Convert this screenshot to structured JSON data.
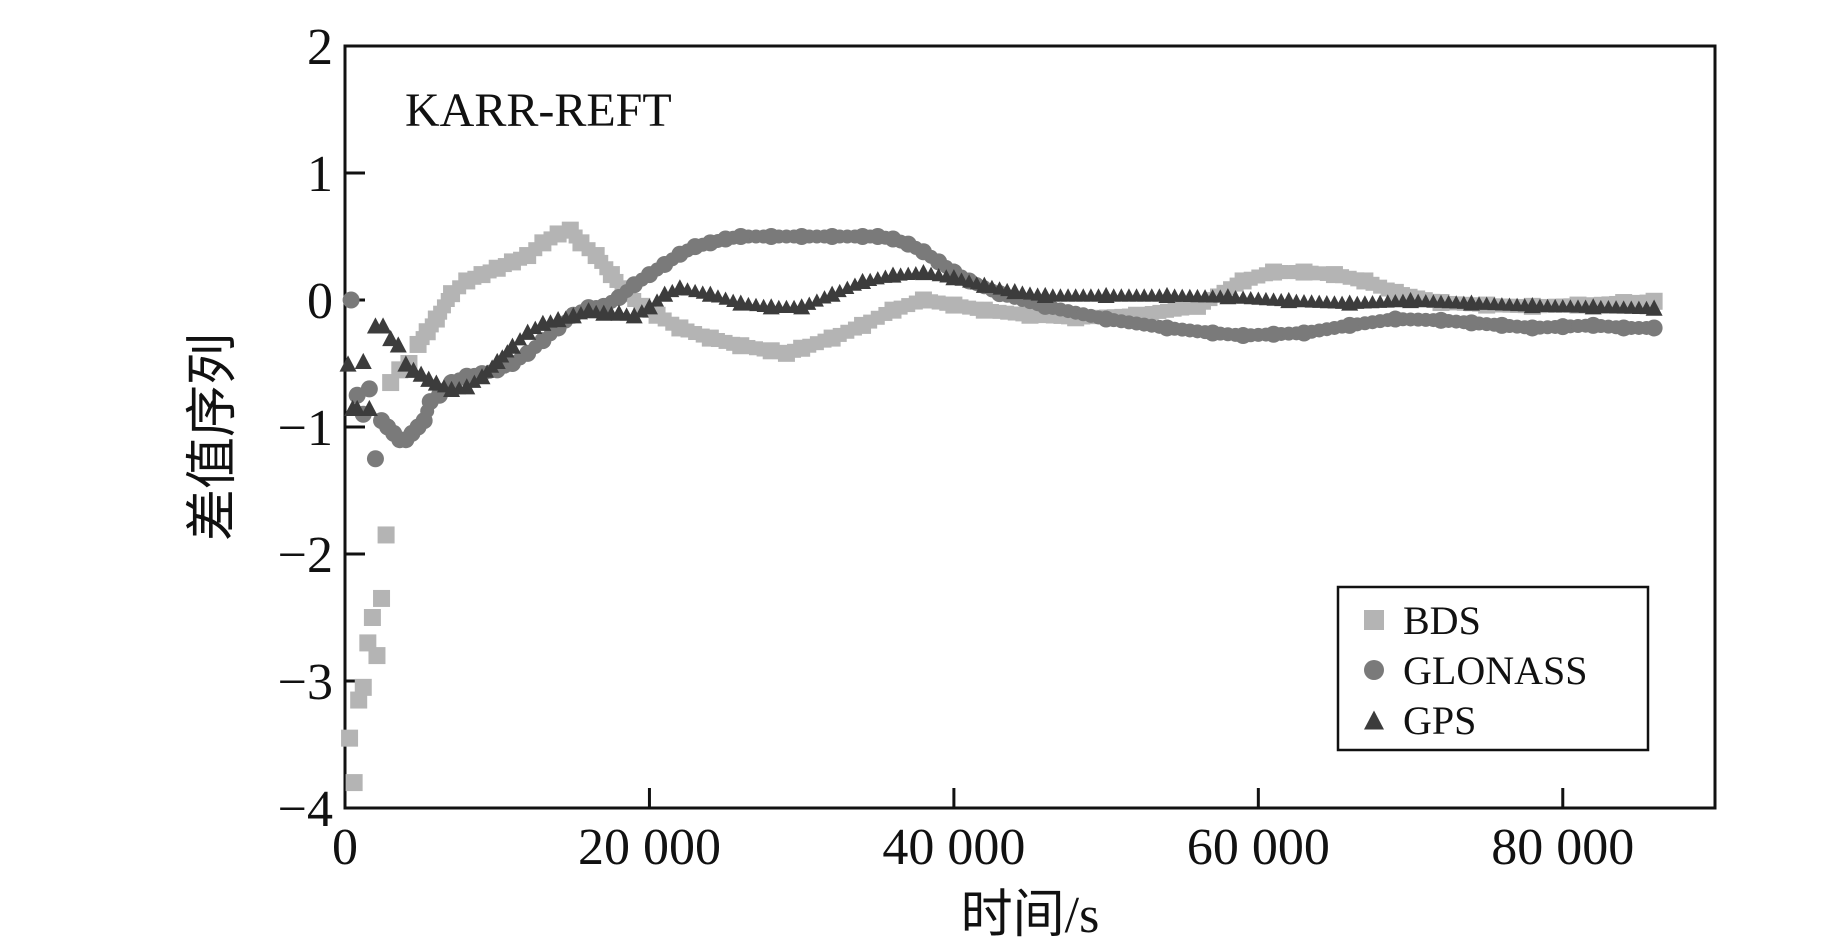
{
  "chart_data": {
    "type": "scatter",
    "plot_label": "KARR-REFT",
    "xlabel": "时间/s",
    "ylabel": "差值序列",
    "xlim": [
      0,
      90000
    ],
    "ylim": [
      -4,
      2
    ],
    "x_ticks": [
      0,
      20000,
      40000,
      60000,
      80000
    ],
    "x_tick_labels": [
      "0",
      "20 000",
      "40 000",
      "60 000",
      "80 000"
    ],
    "y_ticks": [
      -4,
      -3,
      -2,
      -1,
      0,
      1,
      2
    ],
    "y_tick_labels": [
      "−4",
      "−3",
      "−2",
      "−1",
      "0",
      "1",
      "2"
    ],
    "grid": false,
    "legend_position": "bottom-right",
    "series": [
      {
        "name": "BDS",
        "marker": "square",
        "color": "#b4b4b4",
        "x": [
          300,
          600,
          900,
          1200,
          1500,
          1800,
          2100,
          2400,
          2700,
          3000,
          3600,
          4200,
          4800,
          5400,
          6000,
          7000,
          8000,
          9000,
          10000,
          11000,
          12000,
          13000,
          14000,
          14800,
          15500,
          16500,
          17500,
          18500,
          19500,
          20500,
          22000,
          24000,
          26000,
          28000,
          29000,
          30000,
          32000,
          34000,
          36000,
          38000,
          40000,
          42000,
          45000,
          48000,
          52000,
          56000,
          59000,
          61000,
          63000,
          65000,
          67000,
          69000,
          72000,
          75000,
          78000,
          81000,
          84000,
          86000
        ],
        "y": [
          -3.45,
          -3.8,
          -3.15,
          -3.05,
          -2.7,
          -2.5,
          -2.8,
          -2.35,
          -1.85,
          -0.65,
          -0.55,
          -0.5,
          -0.35,
          -0.25,
          -0.15,
          0.05,
          0.15,
          0.2,
          0.25,
          0.3,
          0.35,
          0.45,
          0.52,
          0.55,
          0.45,
          0.35,
          0.2,
          0.05,
          -0.05,
          -0.12,
          -0.22,
          -0.3,
          -0.36,
          -0.4,
          -0.42,
          -0.38,
          -0.3,
          -0.2,
          -0.08,
          0.0,
          -0.04,
          -0.08,
          -0.12,
          -0.14,
          -0.12,
          -0.05,
          0.15,
          0.22,
          0.22,
          0.2,
          0.15,
          0.06,
          -0.02,
          -0.04,
          -0.05,
          -0.04,
          -0.02,
          -0.01
        ]
      },
      {
        "name": "GLONASS",
        "marker": "circle",
        "color": "#7a7a7a",
        "x": [
          400,
          800,
          1200,
          1600,
          2000,
          2400,
          2800,
          3200,
          3600,
          4000,
          4400,
          4800,
          5200,
          5600,
          6200,
          7000,
          8000,
          9000,
          10000,
          11000,
          12000,
          13000,
          14000,
          15000,
          16000,
          17000,
          18000,
          19000,
          20000,
          21000,
          22000,
          23000,
          24000,
          25000,
          26000,
          28000,
          30000,
          32000,
          34000,
          35000,
          36000,
          37000,
          38000,
          39000,
          40000,
          41000,
          43000,
          46000,
          50000,
          54000,
          57000,
          59000,
          61000,
          63000,
          66000,
          69000,
          72000,
          74000,
          76000,
          78000,
          80000,
          82000,
          84000,
          86000
        ],
        "y": [
          0.0,
          -0.75,
          -0.9,
          -0.7,
          -1.25,
          -0.95,
          -1.0,
          -1.05,
          -1.1,
          -1.1,
          -1.05,
          -1.0,
          -0.95,
          -0.8,
          -0.75,
          -0.65,
          -0.6,
          -0.58,
          -0.55,
          -0.5,
          -0.42,
          -0.32,
          -0.22,
          -0.12,
          -0.06,
          -0.05,
          0.02,
          0.12,
          0.2,
          0.28,
          0.36,
          0.42,
          0.45,
          0.48,
          0.5,
          0.5,
          0.5,
          0.5,
          0.5,
          0.5,
          0.48,
          0.44,
          0.38,
          0.3,
          0.22,
          0.15,
          0.05,
          -0.05,
          -0.15,
          -0.22,
          -0.26,
          -0.28,
          -0.27,
          -0.26,
          -0.2,
          -0.15,
          -0.16,
          -0.18,
          -0.2,
          -0.22,
          -0.21,
          -0.2,
          -0.22,
          -0.22
        ]
      },
      {
        "name": "GPS",
        "marker": "triangle",
        "color": "#3c3c3c",
        "x": [
          200,
          500,
          800,
          1200,
          1600,
          2000,
          2500,
          3000,
          3500,
          4000,
          4500,
          5000,
          5500,
          6000,
          7000,
          8000,
          9000,
          10000,
          11000,
          12000,
          13000,
          14000,
          15000,
          16000,
          17000,
          18000,
          19000,
          20000,
          21000,
          22000,
          24000,
          26000,
          28000,
          30000,
          32000,
          34000,
          36000,
          38000,
          40000,
          42000,
          44000,
          46000,
          50000,
          54000,
          58000,
          62000,
          66000,
          70000,
          74000,
          78000,
          82000,
          86000
        ],
        "y": [
          -0.5,
          -0.85,
          -0.85,
          -0.48,
          -0.85,
          -0.2,
          -0.2,
          -0.3,
          -0.35,
          -0.5,
          -0.55,
          -0.58,
          -0.62,
          -0.65,
          -0.7,
          -0.68,
          -0.6,
          -0.48,
          -0.36,
          -0.25,
          -0.18,
          -0.15,
          -0.12,
          -0.08,
          -0.1,
          -0.1,
          -0.12,
          -0.05,
          0.05,
          0.1,
          0.05,
          -0.02,
          -0.05,
          -0.05,
          0.05,
          0.15,
          0.2,
          0.22,
          0.18,
          0.12,
          0.07,
          0.04,
          0.04,
          0.04,
          0.03,
          0.0,
          -0.02,
          0.0,
          -0.02,
          -0.04,
          -0.05,
          -0.06
        ]
      }
    ]
  }
}
